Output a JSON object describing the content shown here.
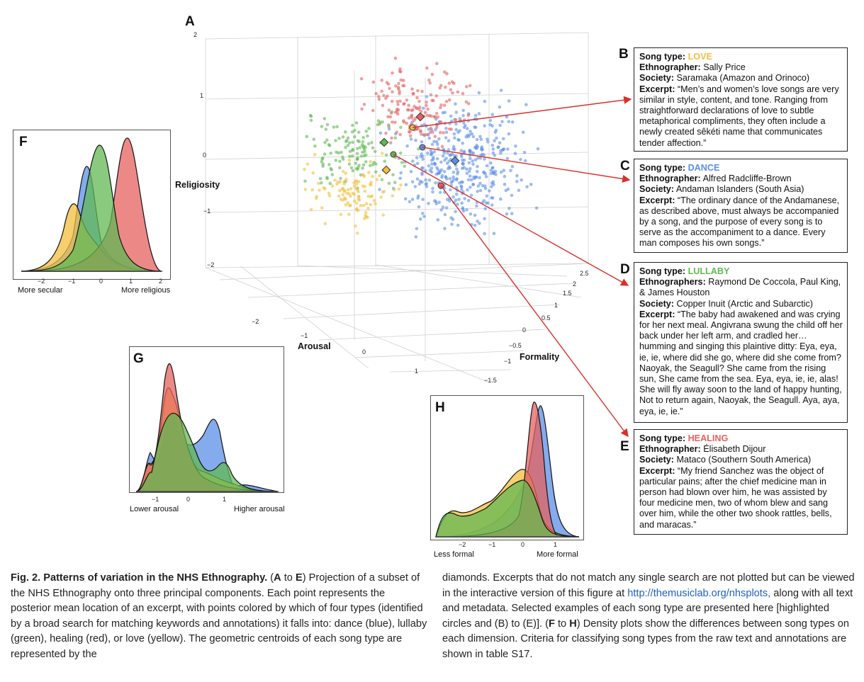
{
  "panel_letters": {
    "a": "A",
    "b": "B",
    "c": "C",
    "d": "D",
    "e": "E",
    "f": "F",
    "g": "G",
    "h": "H"
  },
  "colors": {
    "love": "#f2bf3c",
    "dance": "#5b8fe6",
    "lullaby": "#61b854",
    "healing": "#e5615f",
    "arrow": "#d9302a",
    "link": "#2060c0"
  },
  "scatter3d": {
    "axes": {
      "religiosity": "Religiosity",
      "arousal": "Arousal",
      "formality": "Formality"
    },
    "religiosity_ticks": [
      "2",
      "1",
      "0",
      "−1",
      "−2"
    ],
    "arousal_ticks": [
      "−2",
      "−1",
      "0",
      "1"
    ],
    "formality_ticks": [
      "2.5",
      "2",
      "1.5",
      "1",
      "0.5",
      "0",
      "−0.5",
      "−1",
      "−1.5"
    ]
  },
  "boxes": {
    "b": {
      "type_label": "Song type:",
      "type_value": "LOVE",
      "ethno_label": "Ethnographer:",
      "ethno_value": "Sally Price",
      "society_label": "Society:",
      "society_value": "Saramaka (Amazon and Orinoco)",
      "excerpt_label": "Excerpt:",
      "excerpt_value": "“Men’s and women’s love songs are very similar in style, content, and tone. Ranging from straightforward declarations of love to subtle metaphorical compliments, they often include a newly created sêkéti name that communicates tender affection.”"
    },
    "c": {
      "type_label": "Song type:",
      "type_value": "DANCE",
      "ethno_label": "Ethnographer:",
      "ethno_value": "Alfred Radcliffe-Brown",
      "society_label": "Society:",
      "society_value": "Andaman Islanders (South Asia)",
      "excerpt_label": "Excerpt:",
      "excerpt_value": "“The ordinary dance of the Andamanese, as described above, must always be accompanied by a song, and the purpose of every song is to serve as the accompaniment to a dance. Every man composes his own songs.”"
    },
    "d": {
      "type_label": "Song type:",
      "type_value": "LULLABY",
      "ethno_label": "Ethnographers:",
      "ethno_value": "Raymond De Coccola, Paul King, & James Houston",
      "society_label": "Society:",
      "society_value": "Copper Inuit (Arctic and Subarctic)",
      "excerpt_label": "Excerpt:",
      "excerpt_value": "“The baby had awakened and was crying for her next meal. Angivrana swung the child off her back under her left arm, and cradled her…humming and singing this plaintive ditty: Eya, eya, ie, ie, where did she go, where did she come from? Naoyak, the Seagull? She came from the rising sun, She came from the sea. Eya, eya, ie, ie, alas! She will fly away soon to the land of happy hunting, Not to return again, Naoyak, the Seagull. Aya, aya, eya, ie, ie.”"
    },
    "e": {
      "type_label": "Song type:",
      "type_value": "HEALING",
      "ethno_label": "Ethnographer:",
      "ethno_value": "Élisabeth Dijour",
      "society_label": "Society:",
      "society_value": "Mataco (Southern South America)",
      "excerpt_label": "Excerpt:",
      "excerpt_value": "“My friend Sanchez was the object of particular pains; after the chief medicine man in person had blown over him, he was assisted by four medicine men, two of whom blew and sang over him, while the other two shook rattles, bells, and maracas.”"
    }
  },
  "density": {
    "f": {
      "ticks": [
        "−2",
        "−1",
        "0",
        "1",
        "2"
      ],
      "left_label": "More secular",
      "right_label": "More religious"
    },
    "g": {
      "ticks": [
        "−1",
        "0",
        "1"
      ],
      "left_label": "Lower arousal",
      "right_label": "Higher arousal"
    },
    "h": {
      "ticks": [
        "−2",
        "−1",
        "0",
        "1"
      ],
      "left_label": "Less formal",
      "right_label": "More formal"
    }
  },
  "caption": {
    "title": "Fig. 2. Patterns of variation in the NHS Ethnography.",
    "open": "(",
    "range_start": "A",
    "range_to": " to ",
    "range_end": "E",
    "part1": ") Projection of a subset of the NHS Ethnography onto three principal components. Each point represents the posterior mean location of an excerpt, with points colored by which of four types (identified by a broad search for matching keywords and annotations) it falls into: dance (blue), lullaby (green), healing (red), or love (yellow). The geometric centroids of each song type are represented by the",
    "part2": "diamonds. Excerpts that do not match any single search are not plotted but can be viewed in the interactive version of this figure at",
    "link": "http://themusiclab.org/nhsplots,",
    "part3": "along with all text and metadata. Selected examples of each song type are presented here [highlighted circles and (B) to (E)]. (",
    "fh_start": "F",
    "fh_to": " to ",
    "fh_end": "H",
    "part4": ") Density plots show the differences between song types on each dimension. Criteria for classifying song types from the raw text and annotations are shown in table S17."
  }
}
